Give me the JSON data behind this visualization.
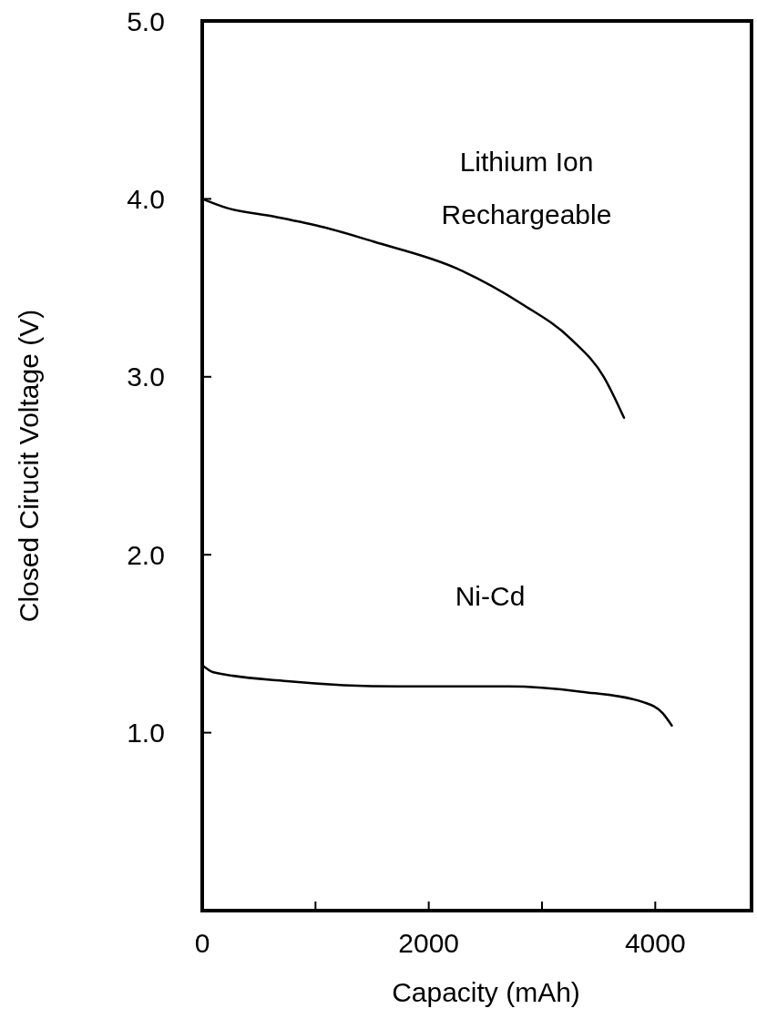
{
  "chart_data": {
    "type": "line",
    "xlabel": "Capacity (mAh)",
    "ylabel": "Closed Cirucit Voltage (V)",
    "xlim": [
      0,
      4850
    ],
    "ylim": [
      0,
      5
    ],
    "xticks": [
      0,
      {
        "value": 1000,
        "label": null
      },
      2000,
      {
        "value": 3000,
        "label": null
      },
      4000
    ],
    "yticks": [
      {
        "value": 1,
        "label": "1.0"
      },
      {
        "value": 2,
        "label": "2.0"
      },
      {
        "value": 3,
        "label": "3.0"
      },
      {
        "value": 4,
        "label": "4.0"
      },
      {
        "value": 5,
        "label": "5.0"
      }
    ],
    "grid": false,
    "legend": false,
    "marker": "none",
    "line_style": "solid",
    "series": [
      {
        "name": "Lithium Ion Rechargeable",
        "color": "#000000",
        "x": [
          0,
          211,
          642,
          1081,
          1512,
          2244,
          2821,
          3260,
          3545,
          3724
        ],
        "values": [
          4.0,
          3.95,
          3.9,
          3.84,
          3.76,
          3.61,
          3.41,
          3.21,
          3.0,
          2.77
        ]
      },
      {
        "name": "Ni-Cd",
        "color": "#000000",
        "x": [
          0,
          98,
          748,
          1724,
          2700,
          3350,
          3902,
          4065,
          4146
        ],
        "values": [
          1.38,
          1.34,
          1.29,
          1.26,
          1.26,
          1.23,
          1.17,
          1.11,
          1.04
        ]
      }
    ]
  }
}
